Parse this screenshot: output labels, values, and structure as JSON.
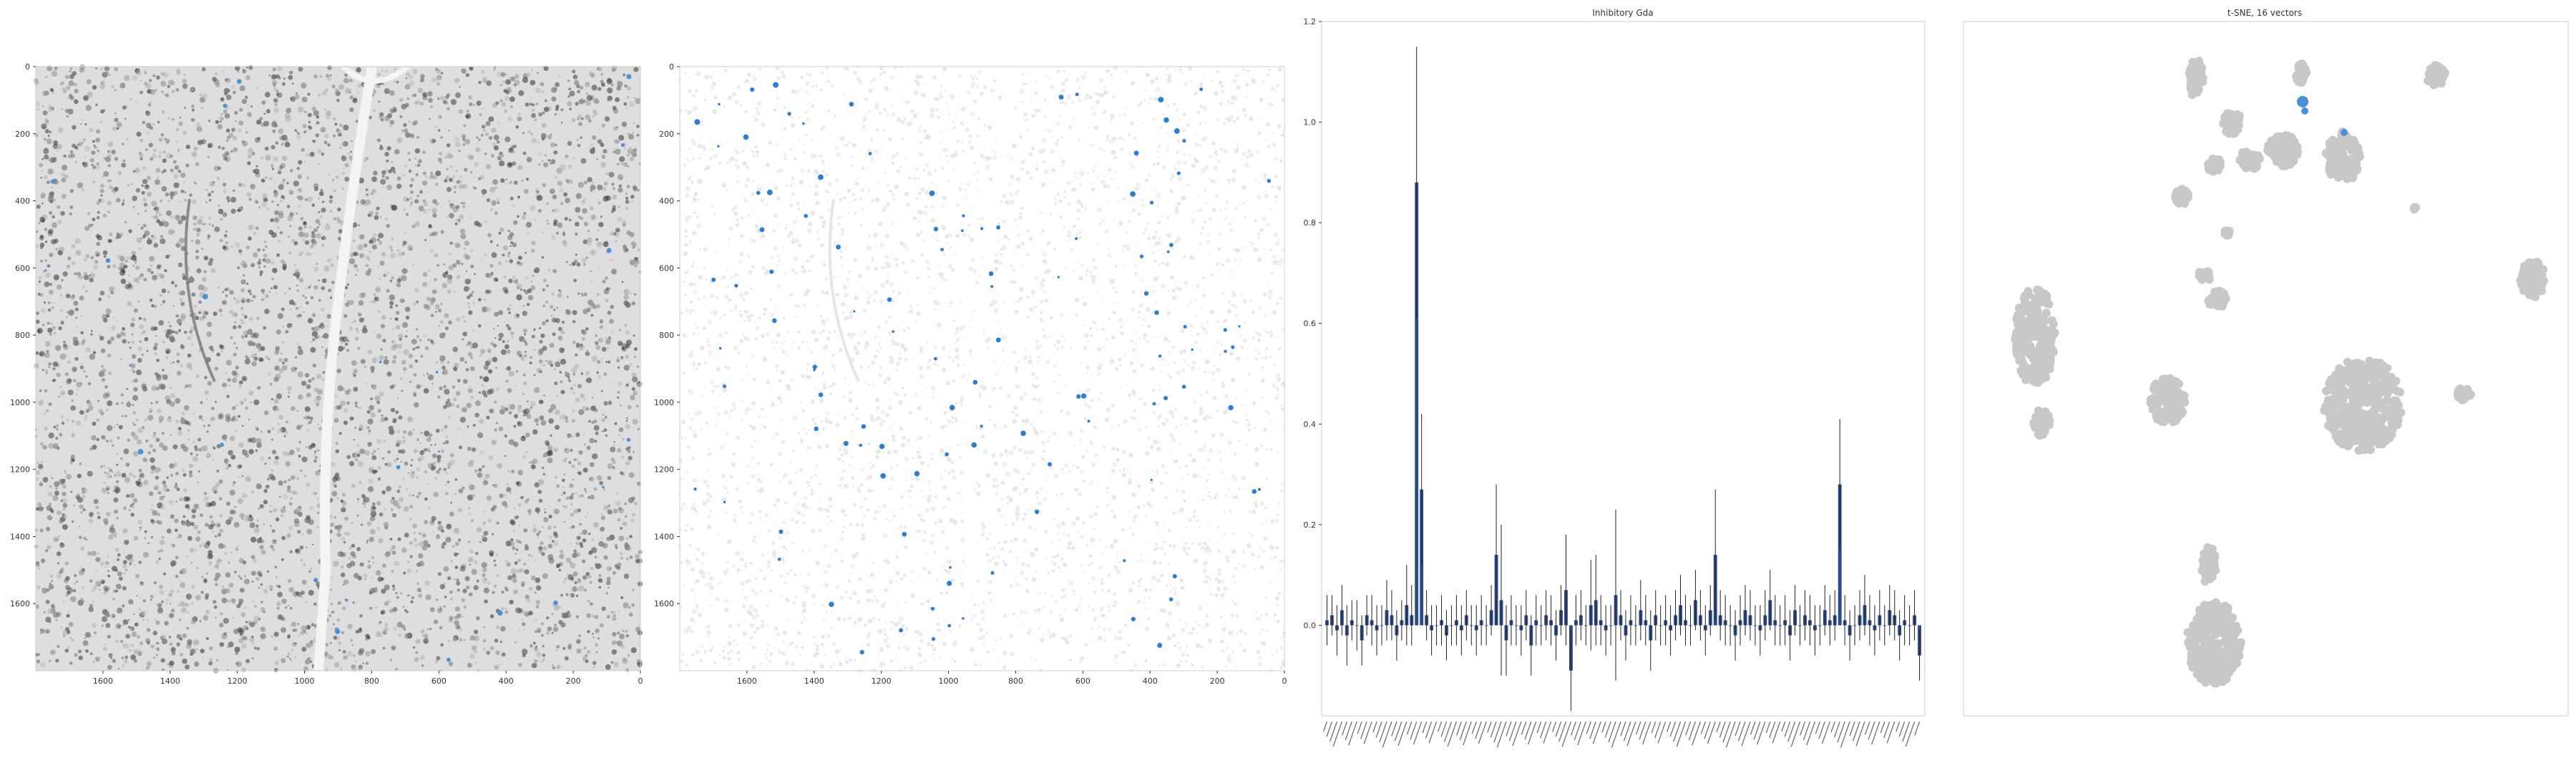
{
  "chart_data": [
    {
      "type": "image",
      "panel": "tissue-grayscale",
      "xlim": [
        1800,
        0
      ],
      "ylim": [
        1800,
        0
      ],
      "xticks": [
        1600,
        1400,
        1200,
        1000,
        800,
        600,
        400,
        200,
        0
      ],
      "yticks": [
        0,
        200,
        400,
        600,
        800,
        1000,
        1200,
        1400,
        1600
      ],
      "highlight_color": "#4a90d9"
    },
    {
      "type": "image",
      "panel": "cell-map-highlighted",
      "xlim": [
        1800,
        0
      ],
      "ylim": [
        1800,
        0
      ],
      "xticks": [
        1600,
        1400,
        1200,
        1000,
        800,
        600,
        400,
        200,
        0
      ],
      "yticks": [
        0,
        200,
        400,
        600,
        800,
        1000,
        1200,
        1400,
        1600
      ],
      "highlight_color": "#2a7fd4"
    },
    {
      "type": "bar",
      "title": "Inhibitory Gda",
      "ylim": [
        -0.18,
        1.2
      ],
      "yticks": [
        "0.0",
        "0.2",
        "0.4",
        "0.6",
        "0.8",
        "1.0",
        "1.2"
      ],
      "bar_color": "#2b4a8a",
      "values": [
        0.01,
        0.02,
        -0.01,
        0.03,
        -0.02,
        0.01,
        0.0,
        -0.03,
        0.02,
        0.01,
        -0.01,
        0.0,
        0.03,
        0.02,
        -0.02,
        0.01,
        0.04,
        0.02,
        0.88,
        0.27,
        0.02,
        -0.01,
        0.0,
        0.01,
        -0.02,
        0.0,
        0.01,
        -0.01,
        0.02,
        0.0,
        -0.01,
        0.01,
        0.0,
        0.03,
        0.14,
        0.05,
        -0.03,
        0.01,
        0.0,
        -0.01,
        0.02,
        -0.04,
        0.01,
        0.0,
        0.02,
        0.01,
        -0.02,
        0.03,
        0.07,
        -0.09,
        0.01,
        0.02,
        0.0,
        0.04,
        0.05,
        0.01,
        -0.01,
        0.0,
        0.06,
        0.02,
        -0.02,
        0.01,
        0.0,
        0.03,
        0.01,
        -0.03,
        0.02,
        0.0,
        0.01,
        -0.01,
        0.02,
        0.04,
        0.01,
        0.0,
        0.05,
        0.02,
        -0.01,
        0.03,
        0.14,
        0.02,
        0.01,
        0.0,
        -0.02,
        0.01,
        0.03,
        0.02,
        0.0,
        -0.01,
        0.02,
        0.05,
        0.01,
        0.0,
        0.01,
        -0.02,
        0.03,
        0.0,
        0.02,
        0.01,
        -0.01,
        0.0,
        0.03,
        0.01,
        0.02,
        0.28,
        0.01,
        -0.02,
        0.0,
        0.02,
        0.04,
        0.01,
        -0.01,
        0.02,
        0.0,
        0.03,
        0.02,
        -0.02,
        0.01,
        0.0,
        0.02,
        -0.06
      ],
      "errors": [
        0.05,
        0.04,
        0.05,
        0.05,
        0.06,
        0.04,
        0.05,
        0.05,
        0.04,
        0.05,
        0.05,
        0.04,
        0.06,
        0.05,
        0.05,
        0.04,
        0.08,
        0.06,
        0.27,
        0.15,
        0.05,
        0.05,
        0.04,
        0.05,
        0.05,
        0.04,
        0.05,
        0.05,
        0.05,
        0.04,
        0.05,
        0.05,
        0.04,
        0.05,
        0.14,
        0.15,
        0.07,
        0.05,
        0.04,
        0.05,
        0.05,
        0.06,
        0.05,
        0.04,
        0.05,
        0.05,
        0.05,
        0.05,
        0.11,
        0.08,
        0.05,
        0.05,
        0.04,
        0.09,
        0.09,
        0.05,
        0.05,
        0.04,
        0.17,
        0.05,
        0.05,
        0.05,
        0.04,
        0.06,
        0.05,
        0.06,
        0.05,
        0.04,
        0.05,
        0.05,
        0.05,
        0.06,
        0.05,
        0.04,
        0.06,
        0.05,
        0.05,
        0.05,
        0.13,
        0.05,
        0.05,
        0.04,
        0.05,
        0.05,
        0.05,
        0.05,
        0.04,
        0.05,
        0.05,
        0.06,
        0.05,
        0.04,
        0.05,
        0.05,
        0.05,
        0.04,
        0.05,
        0.05,
        0.05,
        0.04,
        0.05,
        0.05,
        0.05,
        0.13,
        0.05,
        0.05,
        0.04,
        0.05,
        0.06,
        0.05,
        0.05,
        0.05,
        0.04,
        0.05,
        0.05,
        0.05,
        0.05,
        0.04,
        0.05,
        0.05
      ]
    },
    {
      "type": "scatter",
      "title": "t-SNE, 16 vectors",
      "base_color": "#c8c8c8",
      "highlight_color": "#4a90d9"
    }
  ]
}
